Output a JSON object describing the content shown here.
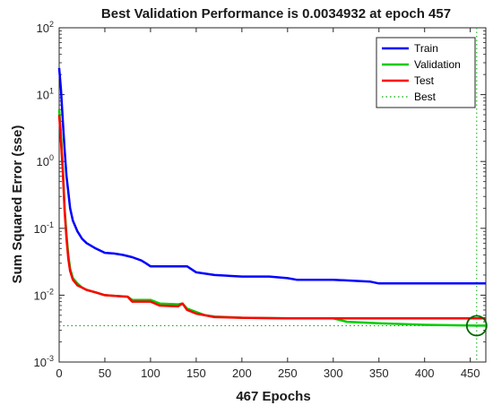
{
  "chart_data": {
    "type": "line",
    "title": "Best Validation Performance is 0.0034932 at epoch 457",
    "xlabel": "467 Epochs",
    "ylabel": "Sum Squared Error  (sse)",
    "xlim": [
      0,
      467
    ],
    "ylim": [
      0.001,
      100
    ],
    "yscale": "log",
    "xticks": [
      0,
      50,
      100,
      150,
      200,
      250,
      300,
      350,
      400,
      450
    ],
    "yticks": [
      {
        "value": 0.001,
        "label": "10",
        "exp": "-3"
      },
      {
        "value": 0.01,
        "label": "10",
        "exp": "-2"
      },
      {
        "value": 0.1,
        "label": "10",
        "exp": "-1"
      },
      {
        "value": 1,
        "label": "10",
        "exp": "0"
      },
      {
        "value": 10,
        "label": "10",
        "exp": "1"
      },
      {
        "value": 100,
        "label": "10",
        "exp": "2"
      }
    ],
    "legend_position": "top-right",
    "grid": false,
    "series": [
      {
        "name": "Train",
        "color": "#0000ff",
        "style": "solid",
        "x": [
          0,
          2,
          4,
          6,
          8,
          10,
          12,
          15,
          20,
          25,
          30,
          40,
          50,
          60,
          70,
          80,
          90,
          95,
          100,
          120,
          140,
          150,
          170,
          200,
          230,
          250,
          260,
          300,
          340,
          350,
          400,
          450,
          467
        ],
        "y": [
          25,
          12,
          4,
          1.5,
          0.6,
          0.35,
          0.2,
          0.13,
          0.09,
          0.07,
          0.06,
          0.05,
          0.043,
          0.042,
          0.04,
          0.037,
          0.033,
          0.03,
          0.027,
          0.027,
          0.027,
          0.022,
          0.02,
          0.019,
          0.019,
          0.018,
          0.017,
          0.017,
          0.016,
          0.015,
          0.015,
          0.015,
          0.015
        ]
      },
      {
        "name": "Validation",
        "color": "#00cc00",
        "style": "solid",
        "x": [
          0,
          2,
          4,
          6,
          8,
          10,
          12,
          15,
          20,
          25,
          30,
          40,
          50,
          60,
          75,
          80,
          100,
          110,
          130,
          135,
          140,
          150,
          160,
          170,
          200,
          250,
          300,
          315,
          350,
          400,
          457,
          467
        ],
        "y": [
          6,
          2.5,
          0.8,
          0.2,
          0.08,
          0.04,
          0.025,
          0.018,
          0.015,
          0.013,
          0.012,
          0.011,
          0.01,
          0.0098,
          0.0095,
          0.0085,
          0.0085,
          0.0075,
          0.0073,
          0.0075,
          0.0063,
          0.0056,
          0.005,
          0.0048,
          0.0046,
          0.0045,
          0.0045,
          0.004,
          0.0038,
          0.0036,
          0.0035,
          0.0035
        ]
      },
      {
        "name": "Test",
        "color": "#ff0000",
        "style": "solid",
        "x": [
          0,
          2,
          4,
          6,
          8,
          10,
          12,
          15,
          20,
          25,
          30,
          40,
          50,
          60,
          75,
          80,
          100,
          110,
          130,
          135,
          140,
          150,
          160,
          170,
          200,
          250,
          300,
          315,
          350,
          400,
          457,
          467
        ],
        "y": [
          5,
          2,
          0.7,
          0.18,
          0.07,
          0.035,
          0.023,
          0.017,
          0.014,
          0.013,
          0.012,
          0.011,
          0.01,
          0.0098,
          0.0095,
          0.008,
          0.008,
          0.007,
          0.0068,
          0.0075,
          0.006,
          0.0053,
          0.005,
          0.0047,
          0.0046,
          0.0045,
          0.0045,
          0.0045,
          0.0045,
          0.0045,
          0.0045,
          0.0045
        ]
      },
      {
        "name": "Best",
        "color": "#00aa00",
        "style": "dotted",
        "marker": "circle",
        "x": 457,
        "y": 0.0034932
      }
    ]
  }
}
